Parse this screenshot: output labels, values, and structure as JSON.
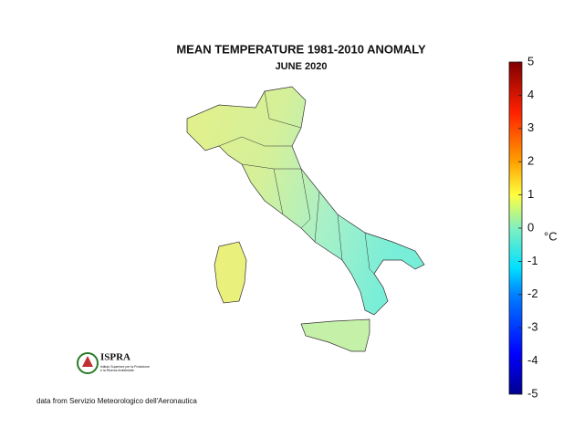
{
  "title": "MEAN TEMPERATURE 1981-2010 ANOMALY",
  "subtitle": "JUNE 2020",
  "colorbar": {
    "label": "°C",
    "range": [
      -5,
      5
    ],
    "ticks": [
      -5,
      -4,
      -3,
      -2,
      -1,
      0,
      1,
      2,
      3,
      4,
      5
    ]
  },
  "logo": {
    "name": "ISPRA",
    "lines": [
      "Istituto Superiore per la Protezione",
      "e la Ricerca Ambientale"
    ]
  },
  "source": "data from Servizio Meteorologico dell'Aeronautica"
}
